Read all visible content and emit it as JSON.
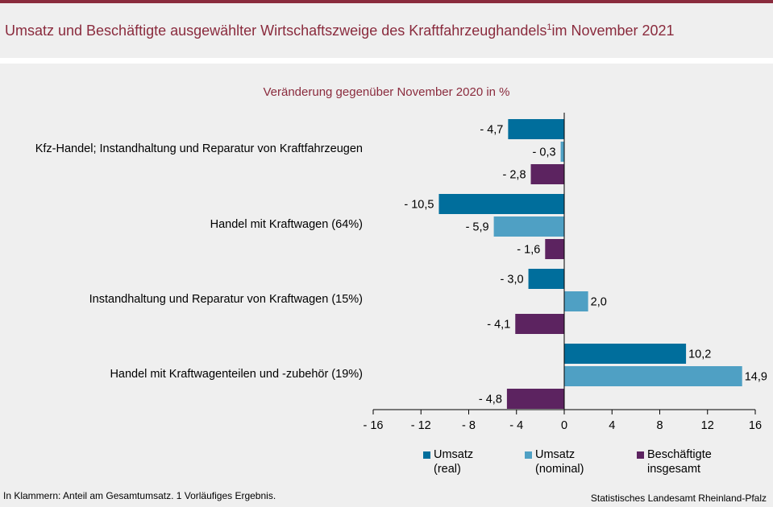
{
  "header": {
    "title": "Umsatz und  Beschäftigte ausgewählter Wirtschaftszweige des Kraftfahrzeughandels",
    "title_sup": "1",
    "title_suffix": "im November 2021"
  },
  "colors": {
    "accent": "#8a2b3d",
    "umsatz_real": "#006e9c",
    "umsatz_nominal": "#4fa0c4",
    "beschaeftigte": "#5c2360"
  },
  "chart_data": {
    "type": "bar",
    "orientation": "horizontal",
    "title": "Veränderung  gegenüber  November 2020 in %",
    "categories": [
      "Kfz-Handel; Instandhaltung und Reparatur von Kraftfahrzeugen",
      "Handel mit Kraftwagen (64%)",
      "Instandhaltung und Reparatur von Kraftwagen (15%)",
      "Handel mit Kraftwagenteilen und -zubehör (19%)"
    ],
    "series": [
      {
        "name": "Umsatz (real)",
        "legend_line1": "Umsatz",
        "legend_line2": "(real)",
        "values": [
          -4.7,
          -10.5,
          -3.0,
          10.2
        ],
        "labels": [
          "- 4,7",
          "- 10,5",
          "- 3,0",
          "10,2"
        ]
      },
      {
        "name": "Umsatz (nominal)",
        "legend_line1": "Umsatz",
        "legend_line2": "(nominal)",
        "values": [
          -0.3,
          -5.9,
          2.0,
          14.9
        ],
        "labels": [
          "- 0,3",
          "- 5,9",
          "2,0",
          "14,9"
        ]
      },
      {
        "name": "Beschäftigte insgesamt",
        "legend_line1": "Beschäftigte",
        "legend_line2": "insgesamt",
        "values": [
          -2.8,
          -1.6,
          -4.1,
          -4.8
        ],
        "labels": [
          "- 2,8",
          "- 1,6",
          "- 4,1",
          "- 4,8"
        ]
      }
    ],
    "xlim": [
      -16,
      16
    ],
    "xticks": [
      -16,
      -12,
      -8,
      -4,
      0,
      4,
      8,
      12,
      16
    ],
    "xtick_labels": [
      "- 16",
      "- 12",
      "- 8",
      "- 4",
      "0",
      "4",
      "8",
      "12",
      "16"
    ],
    "legend_position": "bottom",
    "grid": false
  },
  "footer": {
    "note": "In Klammern:  Anteil am Gesamtumsatz.  1 Vorläufiges  Ergebnis.",
    "source": "Statistisches Landesamt Rheinland-Pfalz"
  }
}
